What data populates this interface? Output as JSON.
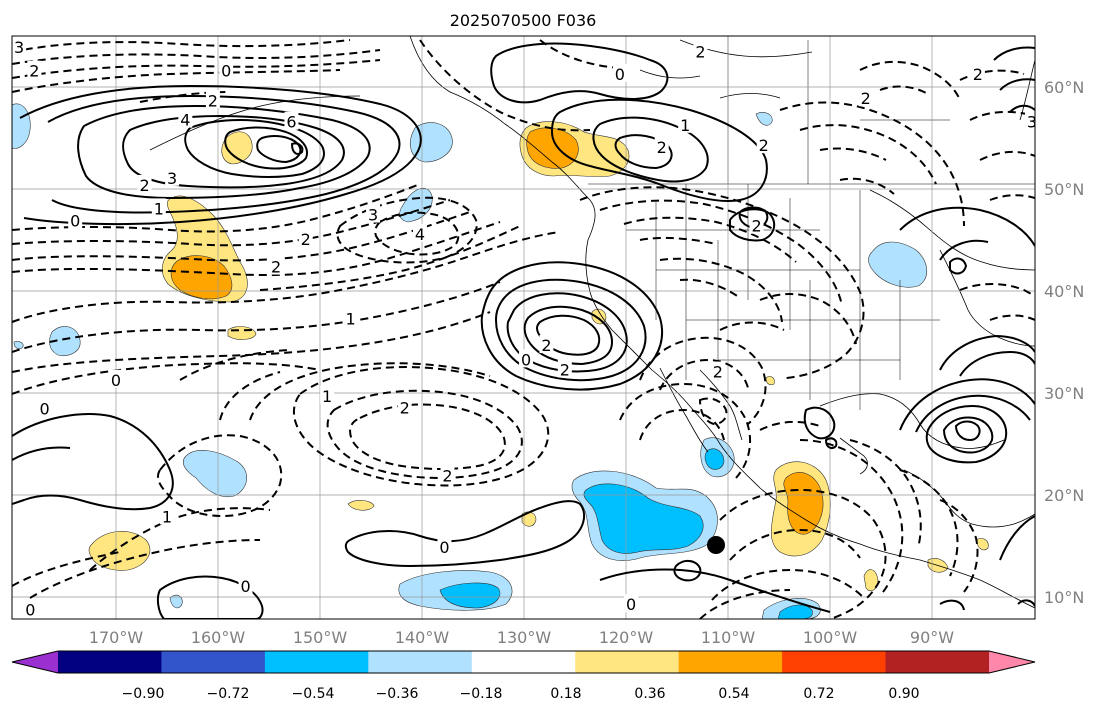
{
  "title": "2025070500 F036",
  "lat_labels": [
    "60°N",
    "50°N",
    "40°N",
    "30°N",
    "20°N",
    "10°N"
  ],
  "lon_labels": [
    "170°W",
    "160°W",
    "150°W",
    "140°W",
    "130°W",
    "120°W",
    "110°W",
    "100°W",
    "90°W"
  ],
  "colorbar": {
    "tick_labels": [
      "−0.90",
      "−0.72",
      "−0.54",
      "−0.36",
      "−0.18",
      "0.18",
      "0.36",
      "0.54",
      "0.72",
      "0.90"
    ],
    "colors": [
      "#9b30d0",
      "#000080",
      "#3355cc",
      "#00bfff",
      "#b0e2ff",
      "#ffffff",
      "#ffe680",
      "#ffa500",
      "#ff4000",
      "#b22222",
      "#ff88aa"
    ]
  },
  "contour_labels": [
    {
      "text": "3",
      "lon": -179.5,
      "lat": 63.8
    },
    {
      "text": "2",
      "lon": -178,
      "lat": 61.5
    },
    {
      "text": "0",
      "lon": -159.2,
      "lat": 61.5
    },
    {
      "text": "2",
      "lon": -160.5,
      "lat": 58.6
    },
    {
      "text": "4",
      "lon": -163.2,
      "lat": 56.7
    },
    {
      "text": "6",
      "lon": -152.8,
      "lat": 56.5
    },
    {
      "text": "3",
      "lon": -164.5,
      "lat": 51
    },
    {
      "text": "2",
      "lon": -167.2,
      "lat": 50.3
    },
    {
      "text": "1",
      "lon": -165.8,
      "lat": 48
    },
    {
      "text": "0",
      "lon": -174,
      "lat": 46.8
    },
    {
      "text": "3",
      "lon": -144.8,
      "lat": 47.4
    },
    {
      "text": "4",
      "lon": -140.2,
      "lat": 45.5
    },
    {
      "text": "2",
      "lon": -151.4,
      "lat": 45
    },
    {
      "text": "2",
      "lon": -154.3,
      "lat": 42.3
    },
    {
      "text": "1",
      "lon": -147,
      "lat": 37.2
    },
    {
      "text": "0",
      "lon": -170,
      "lat": 31.2
    },
    {
      "text": "1",
      "lon": -149.3,
      "lat": 29.6
    },
    {
      "text": "2",
      "lon": -141.7,
      "lat": 28.5
    },
    {
      "text": "2",
      "lon": -137.5,
      "lat": 21.8
    },
    {
      "text": "0",
      "lon": -177,
      "lat": 28.4
    },
    {
      "text": "1",
      "lon": -165,
      "lat": 17.8
    },
    {
      "text": "0",
      "lon": -137.8,
      "lat": 14.8
    },
    {
      "text": "0",
      "lon": -157.3,
      "lat": 11
    },
    {
      "text": "0",
      "lon": -178.4,
      "lat": 8.7
    },
    {
      "text": "0",
      "lon": -119.5,
      "lat": 9.2
    },
    {
      "text": "0",
      "lon": -120.6,
      "lat": 61.2
    },
    {
      "text": "1",
      "lon": -114.2,
      "lat": 56.2
    },
    {
      "text": "2",
      "lon": -116.5,
      "lat": 54
    },
    {
      "text": "2",
      "lon": -112.7,
      "lat": 63.4
    },
    {
      "text": "2",
      "lon": -106.5,
      "lat": 54.2
    },
    {
      "text": "2",
      "lon": -107.2,
      "lat": 46.3
    },
    {
      "text": "2",
      "lon": -96.5,
      "lat": 58.8
    },
    {
      "text": "2",
      "lon": -85.5,
      "lat": 61.2
    },
    {
      "text": "3",
      "lon": -80.2,
      "lat": 56.5
    },
    {
      "text": "2",
      "lon": -127.8,
      "lat": 34.6
    },
    {
      "text": "0",
      "lon": -129.8,
      "lat": 33.2
    },
    {
      "text": "2",
      "lon": -126,
      "lat": 32.2
    },
    {
      "text": "2",
      "lon": -111,
      "lat": 32
    }
  ]
}
